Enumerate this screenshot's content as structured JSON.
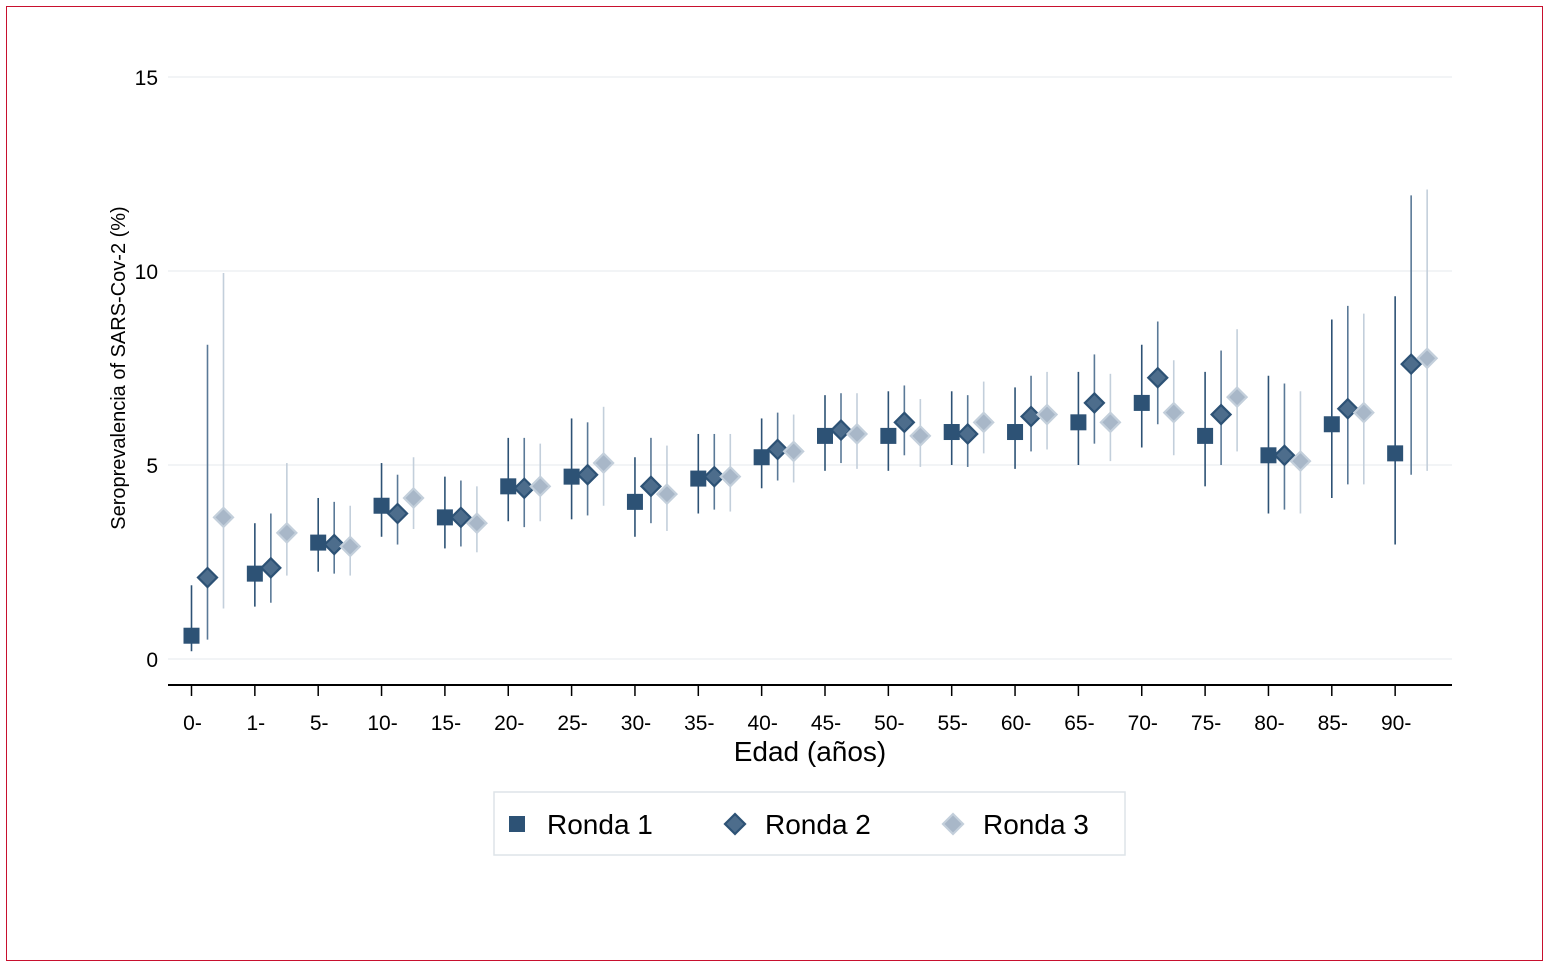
{
  "chart_data": {
    "type": "scatter",
    "title": "",
    "xlabel": "Edad (años)",
    "ylabel": "Seroprevalencia of SARS-Cov-2 (%)",
    "ylim": [
      0,
      15
    ],
    "yticks": [
      0,
      5,
      10,
      15
    ],
    "grid": "horizontal",
    "legend_position": "bottom",
    "categories": [
      "0-",
      "1-",
      "5-",
      "10-",
      "15-",
      "20-",
      "25-",
      "30-",
      "35-",
      "40-",
      "45-",
      "50-",
      "55-",
      "60-",
      "65-",
      "70-",
      "75-",
      "80-",
      "85-",
      "90-"
    ],
    "series": [
      {
        "name": "Ronda 1",
        "marker": "square",
        "color": "#2d5275",
        "line_color": "#2d5275",
        "values": [
          0.6,
          2.2,
          3.0,
          3.95,
          3.65,
          4.45,
          4.7,
          4.05,
          4.65,
          5.2,
          5.75,
          5.75,
          5.85,
          5.85,
          6.1,
          6.6,
          5.75,
          5.25,
          6.05,
          5.3
        ],
        "lower": [
          0.2,
          1.35,
          2.25,
          3.15,
          2.85,
          3.55,
          3.6,
          3.15,
          3.75,
          4.4,
          4.85,
          4.85,
          5.0,
          4.9,
          5.0,
          5.45,
          4.45,
          3.75,
          4.15,
          2.95
        ],
        "upper": [
          1.9,
          3.5,
          4.15,
          5.05,
          4.7,
          5.7,
          6.2,
          5.2,
          5.8,
          6.2,
          6.8,
          6.9,
          6.9,
          7.0,
          7.4,
          8.1,
          7.4,
          7.3,
          8.75,
          9.35
        ]
      },
      {
        "name": "Ronda 2",
        "marker": "diamond",
        "color": "#4d6d8c",
        "line_color": "#5a7997",
        "values": [
          2.1,
          2.35,
          2.95,
          3.75,
          3.65,
          4.4,
          4.75,
          4.45,
          4.7,
          5.4,
          5.9,
          6.1,
          5.8,
          6.25,
          6.6,
          7.25,
          6.3,
          5.25,
          6.45,
          7.6
        ],
        "lower": [
          0.5,
          1.45,
          2.2,
          2.95,
          2.9,
          3.4,
          3.7,
          3.5,
          3.85,
          4.6,
          5.05,
          5.25,
          4.95,
          5.35,
          5.55,
          6.05,
          5.0,
          3.85,
          4.5,
          4.75
        ],
        "upper": [
          8.1,
          3.75,
          4.05,
          4.75,
          4.6,
          5.7,
          6.1,
          5.7,
          5.8,
          6.35,
          6.85,
          7.05,
          6.8,
          7.3,
          7.85,
          8.7,
          7.95,
          7.1,
          9.1,
          11.95
        ]
      },
      {
        "name": "Ronda 3",
        "marker": "diamond",
        "color": "#a8b7c8",
        "line_color": "#c3cfdb",
        "values": [
          3.65,
          3.25,
          2.9,
          4.15,
          3.5,
          4.45,
          5.05,
          4.25,
          4.7,
          5.35,
          5.8,
          5.75,
          6.1,
          6.3,
          6.1,
          6.35,
          6.75,
          5.1,
          6.35,
          7.75
        ],
        "lower": [
          1.3,
          2.15,
          2.15,
          3.35,
          2.75,
          3.55,
          3.95,
          3.3,
          3.8,
          4.55,
          4.9,
          4.95,
          5.3,
          5.4,
          5.1,
          5.25,
          5.35,
          3.75,
          4.5,
          4.85
        ],
        "upper": [
          9.95,
          5.05,
          3.95,
          5.2,
          4.45,
          5.55,
          6.5,
          5.5,
          5.8,
          6.3,
          6.85,
          6.7,
          7.15,
          7.4,
          7.35,
          7.7,
          8.5,
          6.9,
          8.9,
          12.1
        ]
      }
    ]
  }
}
